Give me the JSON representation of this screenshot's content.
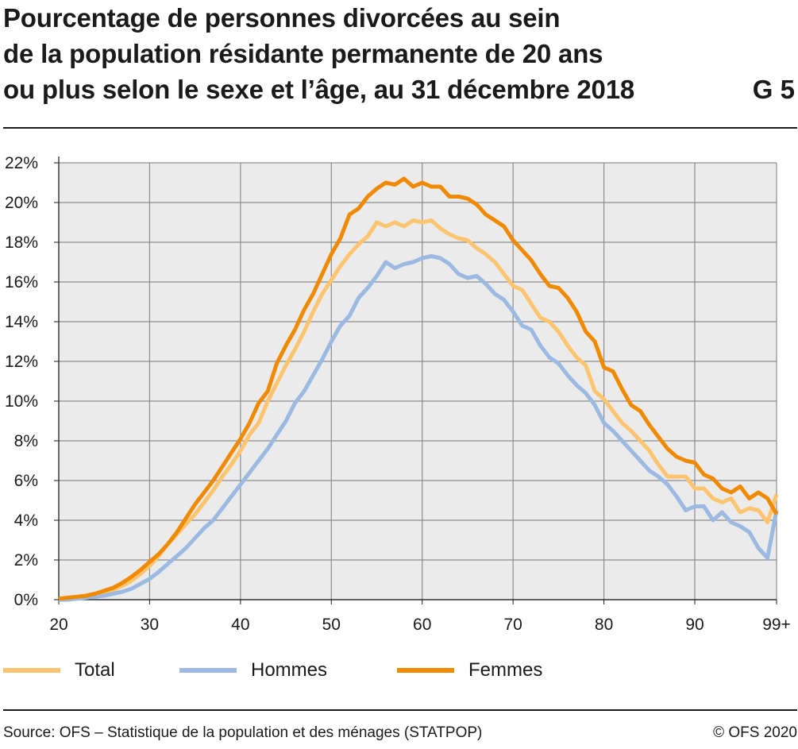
{
  "title": {
    "lines": [
      "Pourcentage de personnes divorcées au sein",
      "de la population résidante permanente de 20 ans",
      "ou plus selon le sexe et l’âge, au 31 décembre 2018"
    ],
    "code": "G 5"
  },
  "footer": {
    "source": "Source: OFS – Statistique de la population et des ménages (STATPOP)",
    "copyright": "© OFS 2020"
  },
  "chart_data": {
    "type": "line",
    "xlabel": "",
    "ylabel": "",
    "xlim": [
      20,
      99
    ],
    "ylim": [
      0,
      22
    ],
    "grid": true,
    "legend_position": "bottom",
    "x_ticks": [
      20,
      30,
      40,
      50,
      60,
      70,
      80,
      90
    ],
    "x_tick_labels": [
      "20",
      "30",
      "40",
      "50",
      "60",
      "70",
      "80",
      "90"
    ],
    "x_last_label": "99+",
    "y_ticks": [
      0,
      2,
      4,
      6,
      8,
      10,
      12,
      14,
      16,
      18,
      20,
      22
    ],
    "y_tick_labels": [
      "0%",
      "2%",
      "4%",
      "6%",
      "8%",
      "10%",
      "12%",
      "14%",
      "16%",
      "18%",
      "20%",
      "22%"
    ],
    "x": [
      20,
      21,
      22,
      23,
      24,
      25,
      26,
      27,
      28,
      29,
      30,
      31,
      32,
      33,
      34,
      35,
      36,
      37,
      38,
      39,
      40,
      41,
      42,
      43,
      44,
      45,
      46,
      47,
      48,
      49,
      50,
      51,
      52,
      53,
      54,
      55,
      56,
      57,
      58,
      59,
      60,
      61,
      62,
      63,
      64,
      65,
      66,
      67,
      68,
      69,
      70,
      71,
      72,
      73,
      74,
      75,
      76,
      77,
      78,
      79,
      80,
      81,
      82,
      83,
      84,
      85,
      86,
      87,
      88,
      89,
      90,
      91,
      92,
      93,
      94,
      95,
      96,
      97,
      98,
      99
    ],
    "series": [
      {
        "name": "Total",
        "color": "#fcc46e",
        "values": [
          0.0,
          0.05,
          0.1,
          0.15,
          0.25,
          0.35,
          0.5,
          0.7,
          0.95,
          1.3,
          1.7,
          2.2,
          2.8,
          3.3,
          3.8,
          4.3,
          4.9,
          5.5,
          6.2,
          6.8,
          7.5,
          8.3,
          8.9,
          10.0,
          10.9,
          11.8,
          12.6,
          13.5,
          14.5,
          15.4,
          16.1,
          16.8,
          17.4,
          17.9,
          18.3,
          19.0,
          18.8,
          19.0,
          18.8,
          19.1,
          19.0,
          19.1,
          18.7,
          18.4,
          18.2,
          18.1,
          17.7,
          17.4,
          17.0,
          16.4,
          15.8,
          15.6,
          14.9,
          14.2,
          14.0,
          13.5,
          12.8,
          12.2,
          11.8,
          10.5,
          10.1,
          9.5,
          8.9,
          8.5,
          8.0,
          7.5,
          6.8,
          6.2,
          6.2,
          6.2,
          5.6,
          5.6,
          5.1,
          4.9,
          5.1,
          4.4,
          4.6,
          4.5,
          3.9,
          5.3
        ]
      },
      {
        "name": "Hommes",
        "color": "#9cb9e1",
        "values": [
          0.0,
          0.0,
          0.05,
          0.1,
          0.15,
          0.2,
          0.3,
          0.4,
          0.55,
          0.8,
          1.05,
          1.4,
          1.8,
          2.2,
          2.6,
          3.1,
          3.6,
          4.0,
          4.6,
          5.2,
          5.8,
          6.4,
          7.0,
          7.6,
          8.3,
          9.0,
          9.9,
          10.5,
          11.3,
          12.1,
          13.0,
          13.8,
          14.3,
          15.2,
          15.7,
          16.3,
          17.0,
          16.7,
          16.9,
          17.0,
          17.2,
          17.3,
          17.2,
          16.9,
          16.4,
          16.2,
          16.3,
          15.9,
          15.4,
          15.1,
          14.5,
          13.8,
          13.6,
          12.8,
          12.2,
          11.9,
          11.3,
          10.8,
          10.4,
          9.8,
          8.9,
          8.5,
          8.0,
          7.5,
          7.0,
          6.5,
          6.2,
          5.8,
          5.2,
          4.5,
          4.7,
          4.7,
          4.0,
          4.4,
          3.9,
          3.7,
          3.4,
          2.6,
          2.1,
          4.5
        ]
      },
      {
        "name": "Femmes",
        "color": "#f08a00",
        "values": [
          0.05,
          0.1,
          0.15,
          0.2,
          0.3,
          0.45,
          0.6,
          0.85,
          1.15,
          1.5,
          1.9,
          2.3,
          2.8,
          3.4,
          4.1,
          4.8,
          5.4,
          6.0,
          6.7,
          7.4,
          8.1,
          8.9,
          9.9,
          10.5,
          11.9,
          12.8,
          13.6,
          14.6,
          15.4,
          16.4,
          17.4,
          18.2,
          19.4,
          19.7,
          20.3,
          20.7,
          21.0,
          20.9,
          21.2,
          20.8,
          21.0,
          20.8,
          20.8,
          20.3,
          20.3,
          20.2,
          19.9,
          19.4,
          19.1,
          18.8,
          18.1,
          17.6,
          17.1,
          16.4,
          15.8,
          15.7,
          15.2,
          14.5,
          13.5,
          13.0,
          11.7,
          11.5,
          10.6,
          9.8,
          9.5,
          8.8,
          8.2,
          7.6,
          7.2,
          7.0,
          6.9,
          6.3,
          6.1,
          5.6,
          5.4,
          5.7,
          5.1,
          5.4,
          5.1,
          4.3
        ]
      }
    ]
  }
}
